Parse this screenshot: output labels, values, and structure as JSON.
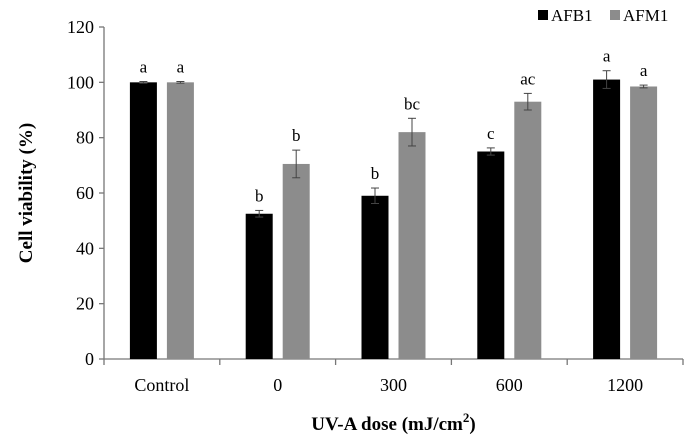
{
  "chart_data": {
    "type": "bar",
    "xlabel": "UV-A dose (mJ/cm",
    "xlabel_sup": "2",
    "xlabel_end": ")",
    "ylabel": "Cell viability (%)",
    "ylim": [
      0,
      120
    ],
    "yticks": [
      "0",
      "20",
      "40",
      "60",
      "80",
      "100",
      "120"
    ],
    "categories": [
      "Control",
      "0",
      "300",
      "600",
      "1200"
    ],
    "legend_position": "top-right",
    "grid": false,
    "series": [
      {
        "name": "AFB1",
        "color": "#000000",
        "values": [
          100,
          52.5,
          59,
          75,
          101
        ],
        "errors": [
          0.3,
          1.2,
          2.8,
          1.3,
          3.2
        ],
        "labels": [
          "a",
          "b",
          "b",
          "c",
          "a"
        ]
      },
      {
        "name": "AFM1",
        "color": "#8c8c8c",
        "values": [
          100,
          70.5,
          82,
          93,
          98.5
        ],
        "errors": [
          0.3,
          5.0,
          5.0,
          3.0,
          0.5
        ],
        "labels": [
          "a",
          "b",
          "bc",
          "ac",
          "a"
        ]
      }
    ]
  }
}
